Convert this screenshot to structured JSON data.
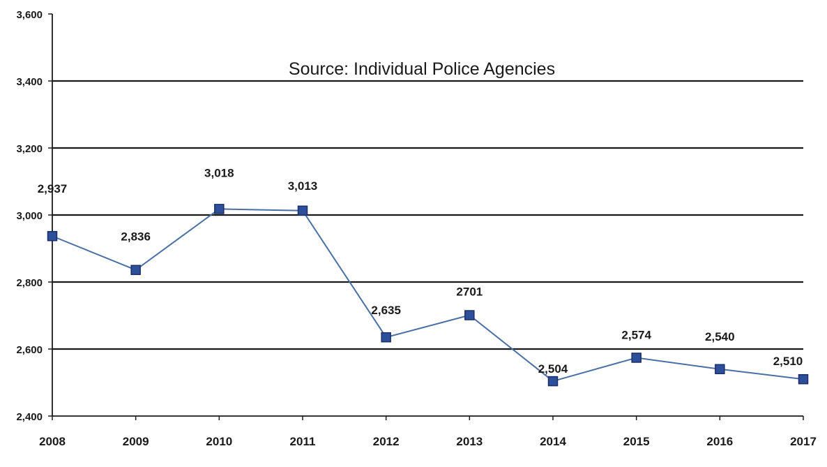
{
  "chart_data": {
    "type": "line",
    "annotation": "Source:  Individual Police Agencies",
    "x": [
      "2008",
      "2009",
      "2010",
      "2011",
      "2012",
      "2013",
      "2014",
      "2015",
      "2016",
      "2017"
    ],
    "series": [
      {
        "values": [
          2937,
          2836,
          3018,
          3013,
          2635,
          2701,
          2504,
          2574,
          2540,
          2510
        ],
        "labels": [
          "2,937",
          "2,836",
          "3,018",
          "3,013",
          "2,635",
          "2701",
          "2,504",
          "2,574",
          "2,540",
          "2,510"
        ],
        "color": "#4a6fa5",
        "marker_color": "#2e4f9a"
      }
    ],
    "ylim": [
      2400,
      3600
    ],
    "yticks": [
      2400,
      2600,
      2800,
      3000,
      3200,
      3400,
      3600
    ],
    "ytick_labels": [
      "2,400",
      "2,600",
      "2,800",
      "3,000",
      "3,200",
      "3,400",
      "3,600"
    ],
    "grid": true,
    "gridline_color": "#1a1a1a"
  }
}
